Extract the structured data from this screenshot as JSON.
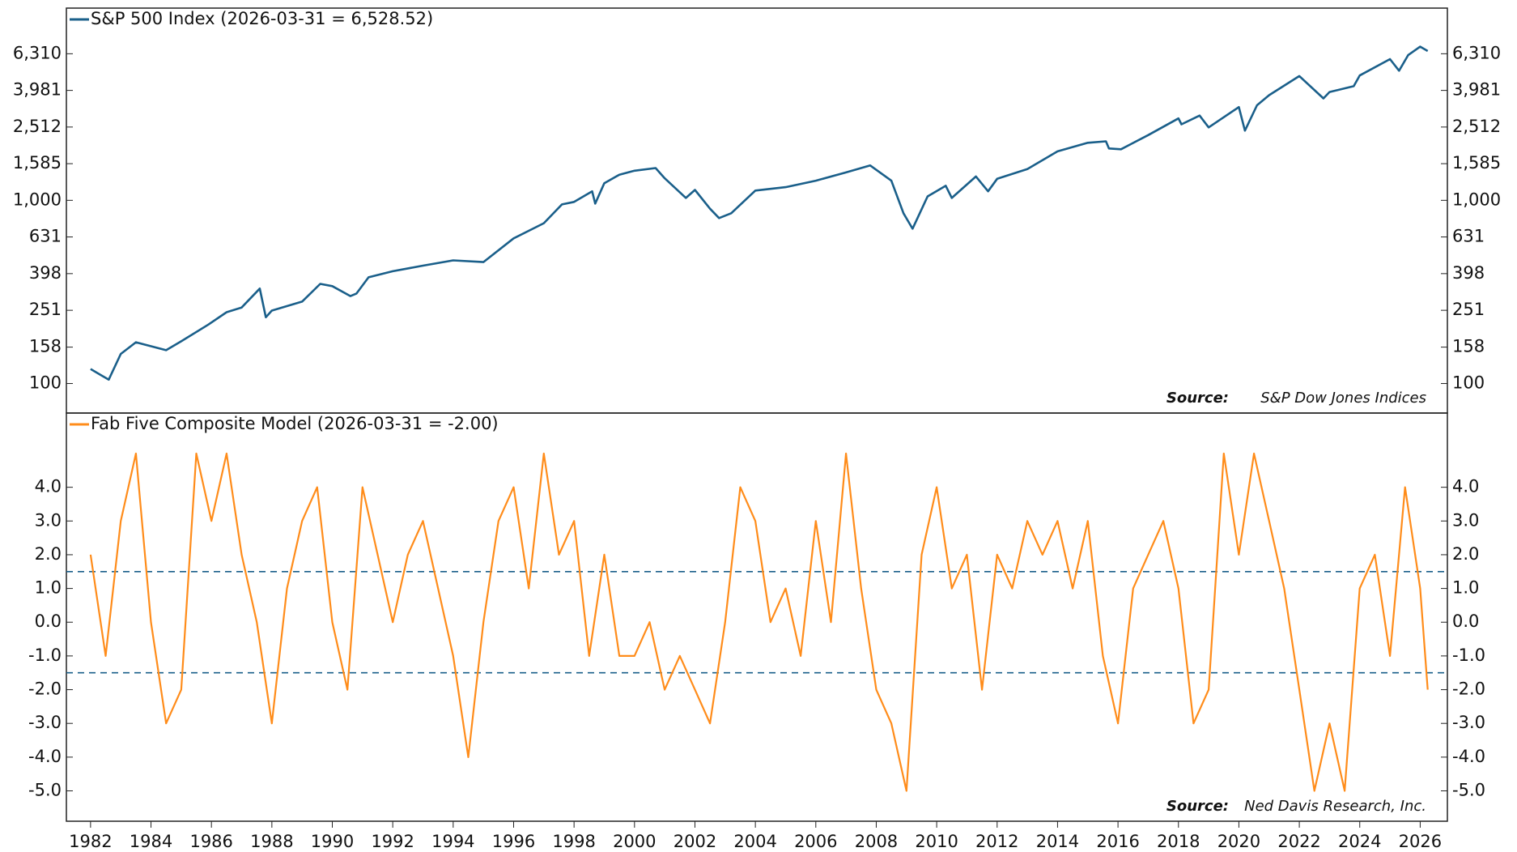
{
  "chart_data": [
    {
      "type": "line",
      "legend": "S&P 500 Index (2026-03-31 = 6,528.52)",
      "source_label": "Source:",
      "source": "S&P Dow Jones Indices",
      "log_scale": true,
      "xlim": [
        1981.2,
        2026.9
      ],
      "ylim": [
        69,
        11200
      ],
      "yticks": [
        100,
        158,
        251,
        398,
        631,
        {
          "value": 1000,
          "label": "1,000"
        },
        {
          "value": 1585,
          "label": "1,585"
        },
        {
          "value": 2512,
          "label": "2,512"
        },
        {
          "value": 3981,
          "label": "3,981"
        },
        {
          "value": 6310,
          "label": "6,310"
        }
      ],
      "series": [
        {
          "name": "S&P 500 Index",
          "color": "#1a5f8a",
          "x": [
            1982.0,
            1982.6,
            1983.0,
            1983.5,
            1984.5,
            1985.0,
            1985.9,
            1986.5,
            1987.0,
            1987.6,
            1987.8,
            1988.0,
            1989.0,
            1989.6,
            1990.0,
            1990.6,
            1990.8,
            1991.2,
            1992.0,
            1993.0,
            1994.0,
            1995.0,
            1996.0,
            1997.0,
            1997.6,
            1998.0,
            1998.6,
            1998.7,
            1999.0,
            1999.5,
            2000.0,
            2000.7,
            2001.0,
            2001.7,
            2002.0,
            2002.5,
            2002.8,
            2003.2,
            2004.0,
            2005.0,
            2006.0,
            2007.0,
            2007.8,
            2008.5,
            2008.9,
            2009.2,
            2009.7,
            2010.3,
            2010.5,
            2011.3,
            2011.7,
            2012.0,
            2013.0,
            2014.0,
            2015.0,
            2015.6,
            2015.7,
            2016.1,
            2017.0,
            2018.0,
            2018.1,
            2018.7,
            2019.0,
            2020.0,
            2020.2,
            2020.6,
            2021.0,
            2022.0,
            2022.8,
            2023.0,
            2023.8,
            2024.0,
            2025.0,
            2025.3,
            2025.6,
            2026.0,
            2026.25
          ],
          "values": [
            120,
            105,
            145,
            168,
            152,
            170,
            210,
            245,
            260,
            330,
            230,
            250,
            280,
            350,
            340,
            300,
            310,
            380,
            410,
            440,
            470,
            460,
            620,
            750,
            950,
            980,
            1120,
            960,
            1240,
            1380,
            1450,
            1500,
            1320,
            1030,
            1140,
            900,
            800,
            850,
            1130,
            1180,
            1280,
            1420,
            1550,
            1280,
            850,
            700,
            1050,
            1200,
            1030,
            1350,
            1120,
            1310,
            1480,
            1850,
            2060,
            2100,
            1920,
            1900,
            2270,
            2800,
            2600,
            2900,
            2500,
            3230,
            2400,
            3300,
            3750,
            4770,
            3600,
            3900,
            4200,
            4800,
            5900,
            5100,
            6200,
            6900,
            6528.52
          ]
        }
      ]
    },
    {
      "type": "line",
      "legend": "Fab Five Composite Model (2026-03-31 = -2.00)",
      "source_label": "Source:",
      "source": "Ned Davis Research, Inc.",
      "xlim": [
        1981.2,
        2026.9
      ],
      "ylim": [
        -5.9,
        6.2
      ],
      "xticks": [
        1982,
        1984,
        1986,
        1988,
        1990,
        1992,
        1994,
        1996,
        1998,
        2000,
        2002,
        2004,
        2006,
        2008,
        2010,
        2012,
        2014,
        2016,
        2018,
        2020,
        2022,
        2024,
        2026
      ],
      "yticks": [
        {
          "value": -5,
          "label": "-5.0"
        },
        {
          "value": -4,
          "label": "-4.0"
        },
        {
          "value": -3,
          "label": "-3.0"
        },
        {
          "value": -2,
          "label": "-2.0"
        },
        {
          "value": -1,
          "label": "-1.0"
        },
        {
          "value": 0,
          "label": "0.0"
        },
        {
          "value": 1,
          "label": "1.0"
        },
        {
          "value": 2,
          "label": "2.0"
        },
        {
          "value": 3,
          "label": "3.0"
        },
        {
          "value": 4,
          "label": "4.0"
        }
      ],
      "reference_lines": [
        1.5,
        -1.5
      ],
      "reference_color": "#1a5f8a",
      "series": [
        {
          "name": "Fab Five Composite Model",
          "color": "#ff8c1a",
          "x": [
            1982.0,
            1982.5,
            1983.0,
            1983.5,
            1984.0,
            1984.5,
            1985.0,
            1985.5,
            1986.0,
            1986.5,
            1987.0,
            1987.5,
            1988.0,
            1988.5,
            1989.0,
            1989.5,
            1990.0,
            1990.5,
            1991.0,
            1991.5,
            1992.0,
            1992.5,
            1993.0,
            1993.5,
            1994.0,
            1994.5,
            1995.0,
            1995.5,
            1996.0,
            1996.5,
            1997.0,
            1997.5,
            1998.0,
            1998.5,
            1999.0,
            1999.5,
            2000.0,
            2000.5,
            2001.0,
            2001.5,
            2002.0,
            2002.5,
            2003.0,
            2003.5,
            2004.0,
            2004.5,
            2005.0,
            2005.5,
            2006.0,
            2006.5,
            2007.0,
            2007.5,
            2008.0,
            2008.5,
            2009.0,
            2009.5,
            2010.0,
            2010.5,
            2011.0,
            2011.5,
            2012.0,
            2012.5,
            2013.0,
            2013.5,
            2014.0,
            2014.5,
            2015.0,
            2015.5,
            2016.0,
            2016.5,
            2017.0,
            2017.5,
            2018.0,
            2018.5,
            2019.0,
            2019.5,
            2020.0,
            2020.5,
            2021.0,
            2021.5,
            2022.0,
            2022.5,
            2023.0,
            2023.5,
            2024.0,
            2024.5,
            2025.0,
            2025.5,
            2026.0,
            2026.25
          ],
          "values": [
            2,
            -1,
            3,
            5,
            0,
            -3,
            -2,
            5,
            3,
            5,
            2,
            0,
            -3,
            1,
            3,
            4,
            0,
            -2,
            4,
            2,
            0,
            2,
            3,
            1,
            -1,
            -4,
            0,
            3,
            4,
            1,
            5,
            2,
            3,
            -1,
            2,
            -1,
            -1,
            0,
            -2,
            -1,
            -2,
            -3,
            0,
            4,
            3,
            0,
            1,
            -1,
            3,
            0,
            5,
            1,
            -2,
            -3,
            -5,
            2,
            4,
            1,
            2,
            -2,
            2,
            1,
            3,
            2,
            3,
            1,
            3,
            -1,
            -3,
            1,
            2,
            3,
            1,
            -3,
            -2,
            5,
            2,
            5,
            3,
            1,
            -2,
            -5,
            -3,
            -5,
            1,
            2,
            -1,
            4,
            1,
            -2
          ]
        }
      ]
    }
  ]
}
